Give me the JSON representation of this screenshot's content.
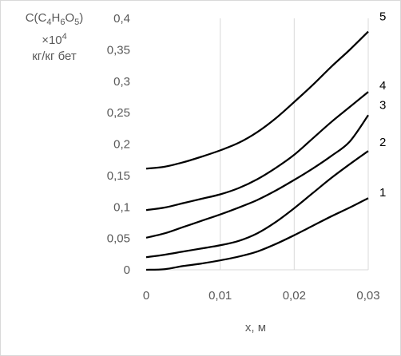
{
  "chart_data": {
    "type": "line",
    "ylabel": {
      "formula_prefix": "C(C",
      "sub1": "4",
      "h": "H",
      "sub2": "6",
      "o": "O",
      "sub3": "5",
      "suffix": ")",
      "multiplier": "×10",
      "multiplier_exp": "4",
      "units": "кг/кг бет"
    },
    "xlabel": "x, м",
    "xlim": [
      0,
      0.03
    ],
    "ylim": [
      0,
      0.4
    ],
    "x_ticks": [
      "0",
      "0,01",
      "0,02",
      "0,03"
    ],
    "y_ticks": [
      "0",
      "0,05",
      "0,1",
      "0,15",
      "0,2",
      "0,25",
      "0,3",
      "0,35",
      "0,4"
    ],
    "x_tick_values": [
      0,
      0.01,
      0.02,
      0.03
    ],
    "y_tick_values": [
      0,
      0.05,
      0.1,
      0.15,
      0.2,
      0.25,
      0.3,
      0.35,
      0.4
    ],
    "grid": "vertical",
    "line_color": "#000000",
    "grid_color": "#d9d9d9",
    "text_color": "#595959",
    "series": [
      {
        "name": "1",
        "x": [
          0,
          0.0025,
          0.005,
          0.0075,
          0.01,
          0.0125,
          0.015,
          0.0175,
          0.02,
          0.0225,
          0.025,
          0.0275,
          0.03
        ],
        "values": [
          0,
          0.001,
          0.006,
          0.01,
          0.015,
          0.021,
          0.029,
          0.041,
          0.055,
          0.07,
          0.085,
          0.099,
          0.114
        ]
      },
      {
        "name": "2",
        "x": [
          0,
          0.0025,
          0.005,
          0.0075,
          0.01,
          0.0125,
          0.015,
          0.0175,
          0.02,
          0.0225,
          0.025,
          0.0275,
          0.03
        ],
        "values": [
          0.02,
          0.024,
          0.029,
          0.034,
          0.039,
          0.046,
          0.058,
          0.076,
          0.098,
          0.122,
          0.146,
          0.168,
          0.189
        ]
      },
      {
        "name": "3",
        "x": [
          0,
          0.0025,
          0.005,
          0.0075,
          0.01,
          0.0125,
          0.015,
          0.0175,
          0.02,
          0.0225,
          0.025,
          0.0275,
          0.03
        ],
        "values": [
          0.051,
          0.058,
          0.068,
          0.078,
          0.088,
          0.099,
          0.111,
          0.126,
          0.143,
          0.161,
          0.181,
          0.204,
          0.246
        ]
      },
      {
        "name": "4",
        "x": [
          0,
          0.0025,
          0.005,
          0.0075,
          0.01,
          0.0125,
          0.015,
          0.0175,
          0.02,
          0.0225,
          0.025,
          0.0275,
          0.03
        ],
        "values": [
          0.095,
          0.099,
          0.106,
          0.113,
          0.12,
          0.13,
          0.144,
          0.162,
          0.183,
          0.209,
          0.235,
          0.259,
          0.283
        ]
      },
      {
        "name": "5",
        "x": [
          0,
          0.0025,
          0.005,
          0.0075,
          0.01,
          0.0125,
          0.015,
          0.0175,
          0.02,
          0.0225,
          0.025,
          0.0275,
          0.03
        ],
        "values": [
          0.161,
          0.164,
          0.171,
          0.18,
          0.19,
          0.202,
          0.219,
          0.241,
          0.267,
          0.294,
          0.323,
          0.35,
          0.379
        ]
      }
    ]
  }
}
